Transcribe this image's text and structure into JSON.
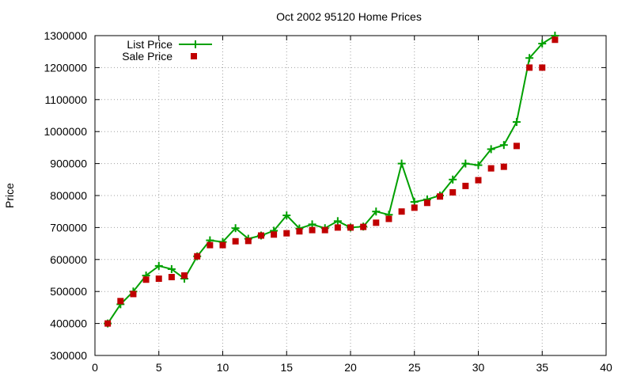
{
  "chart_data": {
    "type": "line",
    "title": "Oct 2002 95120 Home Prices",
    "xlabel": "",
    "ylabel": "Price",
    "xlim": [
      0,
      40
    ],
    "ylim": [
      300000,
      1300000
    ],
    "xticks": [
      0,
      5,
      10,
      15,
      20,
      25,
      30,
      35,
      40
    ],
    "yticks": [
      300000,
      400000,
      500000,
      600000,
      700000,
      800000,
      900000,
      1000000,
      1100000,
      1200000,
      1300000
    ],
    "grid": true,
    "legend_position": "top-left",
    "series": [
      {
        "name": "List Price",
        "style": "line-plus",
        "color": "#00a000",
        "x": [
          1,
          2,
          3,
          4,
          5,
          6,
          7,
          8,
          9,
          10,
          11,
          12,
          13,
          14,
          15,
          16,
          17,
          18,
          19,
          20,
          21,
          22,
          23,
          24,
          25,
          26,
          27,
          28,
          29,
          30,
          31,
          32,
          33,
          34,
          35,
          36
        ],
        "y": [
          400000,
          460000,
          500000,
          550000,
          580000,
          570000,
          540000,
          610000,
          660000,
          655000,
          698000,
          665000,
          675000,
          690000,
          738000,
          697000,
          710000,
          698000,
          720000,
          700000,
          703000,
          750000,
          740000,
          900000,
          780000,
          788000,
          800000,
          850000,
          900000,
          895000,
          945000,
          958000,
          1030000,
          1230000,
          1275000,
          1300000
        ]
      },
      {
        "name": "Sale Price",
        "style": "square",
        "color": "#c00000",
        "x": [
          1,
          2,
          3,
          4,
          5,
          6,
          7,
          8,
          9,
          10,
          11,
          12,
          13,
          14,
          15,
          16,
          17,
          18,
          19,
          20,
          21,
          22,
          23,
          24,
          25,
          26,
          27,
          28,
          29,
          30,
          31,
          32,
          33,
          34,
          35,
          36
        ],
        "y": [
          400000,
          470000,
          492000,
          537000,
          540000,
          545000,
          550000,
          610000,
          645000,
          645000,
          657000,
          658000,
          675000,
          678000,
          682000,
          688000,
          692000,
          692000,
          700000,
          700000,
          702000,
          715000,
          727000,
          750000,
          762000,
          777000,
          797000,
          810000,
          830000,
          848000,
          885000,
          890000,
          955000,
          1200000,
          1200000,
          1287000
        ]
      }
    ]
  }
}
